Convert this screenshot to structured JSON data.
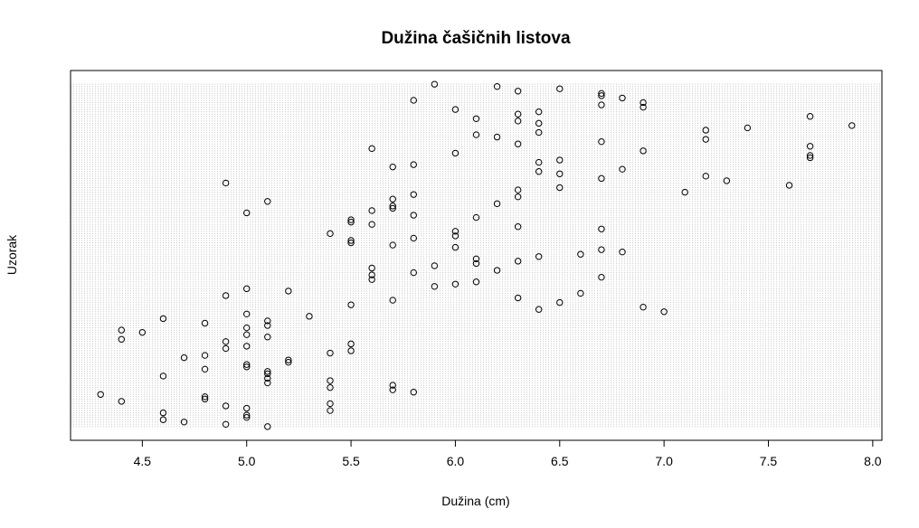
{
  "chart_data": {
    "type": "scatter",
    "title": "Dužina čašičnih listova",
    "xlabel": "Dužina (cm)",
    "ylabel": "Uzorak",
    "xlim": [
      4.3,
      7.9
    ],
    "ylim": [
      1,
      150
    ],
    "x_ticks": [
      "4.5",
      "5.0",
      "5.5",
      "6.0",
      "6.5",
      "7.0",
      "7.5",
      "8.0"
    ],
    "grid": true,
    "grid_style": "dotted horizontal line at every sample index",
    "marker": "open circle",
    "points": [
      {
        "x": 5.1,
        "y": 1
      },
      {
        "x": 4.9,
        "y": 2
      },
      {
        "x": 4.7,
        "y": 3
      },
      {
        "x": 4.6,
        "y": 4
      },
      {
        "x": 5.0,
        "y": 5
      },
      {
        "x": 5.0,
        "y": 6
      },
      {
        "x": 4.6,
        "y": 7
      },
      {
        "x": 5.4,
        "y": 8
      },
      {
        "x": 5.0,
        "y": 9
      },
      {
        "x": 4.9,
        "y": 10
      },
      {
        "x": 5.4,
        "y": 11
      },
      {
        "x": 4.4,
        "y": 12
      },
      {
        "x": 4.8,
        "y": 13
      },
      {
        "x": 4.8,
        "y": 14
      },
      {
        "x": 4.3,
        "y": 15
      },
      {
        "x": 5.8,
        "y": 16
      },
      {
        "x": 5.7,
        "y": 17
      },
      {
        "x": 5.4,
        "y": 18
      },
      {
        "x": 5.7,
        "y": 19
      },
      {
        "x": 5.1,
        "y": 20
      },
      {
        "x": 5.4,
        "y": 21
      },
      {
        "x": 5.1,
        "y": 22
      },
      {
        "x": 4.6,
        "y": 23
      },
      {
        "x": 5.1,
        "y": 24
      },
      {
        "x": 5.1,
        "y": 25
      },
      {
        "x": 4.8,
        "y": 26
      },
      {
        "x": 5.0,
        "y": 27
      },
      {
        "x": 5.0,
        "y": 28
      },
      {
        "x": 5.2,
        "y": 29
      },
      {
        "x": 5.2,
        "y": 30
      },
      {
        "x": 4.7,
        "y": 31
      },
      {
        "x": 4.8,
        "y": 32
      },
      {
        "x": 5.4,
        "y": 33
      },
      {
        "x": 5.5,
        "y": 34
      },
      {
        "x": 4.9,
        "y": 35
      },
      {
        "x": 5.0,
        "y": 36
      },
      {
        "x": 5.5,
        "y": 37
      },
      {
        "x": 4.9,
        "y": 38
      },
      {
        "x": 4.4,
        "y": 39
      },
      {
        "x": 5.1,
        "y": 40
      },
      {
        "x": 5.0,
        "y": 41
      },
      {
        "x": 4.5,
        "y": 42
      },
      {
        "x": 4.4,
        "y": 43
      },
      {
        "x": 5.0,
        "y": 44
      },
      {
        "x": 5.1,
        "y": 45
      },
      {
        "x": 4.8,
        "y": 46
      },
      {
        "x": 5.1,
        "y": 47
      },
      {
        "x": 4.6,
        "y": 48
      },
      {
        "x": 5.3,
        "y": 49
      },
      {
        "x": 5.0,
        "y": 50
      },
      {
        "x": 7.0,
        "y": 51
      },
      {
        "x": 6.4,
        "y": 52
      },
      {
        "x": 6.9,
        "y": 53
      },
      {
        "x": 5.5,
        "y": 54
      },
      {
        "x": 6.5,
        "y": 55
      },
      {
        "x": 5.7,
        "y": 56
      },
      {
        "x": 6.3,
        "y": 57
      },
      {
        "x": 4.9,
        "y": 58
      },
      {
        "x": 6.6,
        "y": 59
      },
      {
        "x": 5.2,
        "y": 60
      },
      {
        "x": 5.0,
        "y": 61
      },
      {
        "x": 5.9,
        "y": 62
      },
      {
        "x": 6.0,
        "y": 63
      },
      {
        "x": 6.1,
        "y": 64
      },
      {
        "x": 5.6,
        "y": 65
      },
      {
        "x": 6.7,
        "y": 66
      },
      {
        "x": 5.6,
        "y": 67
      },
      {
        "x": 5.8,
        "y": 68
      },
      {
        "x": 6.2,
        "y": 69
      },
      {
        "x": 5.6,
        "y": 70
      },
      {
        "x": 5.9,
        "y": 71
      },
      {
        "x": 6.1,
        "y": 72
      },
      {
        "x": 6.3,
        "y": 73
      },
      {
        "x": 6.1,
        "y": 74
      },
      {
        "x": 6.4,
        "y": 75
      },
      {
        "x": 6.6,
        "y": 76
      },
      {
        "x": 6.8,
        "y": 77
      },
      {
        "x": 6.7,
        "y": 78
      },
      {
        "x": 6.0,
        "y": 79
      },
      {
        "x": 5.7,
        "y": 80
      },
      {
        "x": 5.5,
        "y": 81
      },
      {
        "x": 5.5,
        "y": 82
      },
      {
        "x": 5.8,
        "y": 83
      },
      {
        "x": 6.0,
        "y": 84
      },
      {
        "x": 5.4,
        "y": 85
      },
      {
        "x": 6.0,
        "y": 86
      },
      {
        "x": 6.7,
        "y": 87
      },
      {
        "x": 6.3,
        "y": 88
      },
      {
        "x": 5.6,
        "y": 89
      },
      {
        "x": 5.5,
        "y": 90
      },
      {
        "x": 5.5,
        "y": 91
      },
      {
        "x": 6.1,
        "y": 92
      },
      {
        "x": 5.8,
        "y": 93
      },
      {
        "x": 5.0,
        "y": 94
      },
      {
        "x": 5.6,
        "y": 95
      },
      {
        "x": 5.7,
        "y": 96
      },
      {
        "x": 5.7,
        "y": 97
      },
      {
        "x": 6.2,
        "y": 98
      },
      {
        "x": 5.1,
        "y": 99
      },
      {
        "x": 5.7,
        "y": 100
      },
      {
        "x": 6.3,
        "y": 101
      },
      {
        "x": 5.8,
        "y": 102
      },
      {
        "x": 7.1,
        "y": 103
      },
      {
        "x": 6.3,
        "y": 104
      },
      {
        "x": 6.5,
        "y": 105
      },
      {
        "x": 7.6,
        "y": 106
      },
      {
        "x": 4.9,
        "y": 107
      },
      {
        "x": 7.3,
        "y": 108
      },
      {
        "x": 6.7,
        "y": 109
      },
      {
        "x": 7.2,
        "y": 110
      },
      {
        "x": 6.5,
        "y": 111
      },
      {
        "x": 6.4,
        "y": 112
      },
      {
        "x": 6.8,
        "y": 113
      },
      {
        "x": 5.7,
        "y": 114
      },
      {
        "x": 5.8,
        "y": 115
      },
      {
        "x": 6.4,
        "y": 116
      },
      {
        "x": 6.5,
        "y": 117
      },
      {
        "x": 7.7,
        "y": 118
      },
      {
        "x": 7.7,
        "y": 119
      },
      {
        "x": 6.0,
        "y": 120
      },
      {
        "x": 6.9,
        "y": 121
      },
      {
        "x": 5.6,
        "y": 122
      },
      {
        "x": 7.7,
        "y": 123
      },
      {
        "x": 6.3,
        "y": 124
      },
      {
        "x": 6.7,
        "y": 125
      },
      {
        "x": 7.2,
        "y": 126
      },
      {
        "x": 6.2,
        "y": 127
      },
      {
        "x": 6.1,
        "y": 128
      },
      {
        "x": 6.4,
        "y": 129
      },
      {
        "x": 7.2,
        "y": 130
      },
      {
        "x": 7.4,
        "y": 131
      },
      {
        "x": 7.9,
        "y": 132
      },
      {
        "x": 6.4,
        "y": 133
      },
      {
        "x": 6.3,
        "y": 134
      },
      {
        "x": 6.1,
        "y": 135
      },
      {
        "x": 7.7,
        "y": 136
      },
      {
        "x": 6.3,
        "y": 137
      },
      {
        "x": 6.4,
        "y": 138
      },
      {
        "x": 6.0,
        "y": 139
      },
      {
        "x": 6.9,
        "y": 140
      },
      {
        "x": 6.7,
        "y": 141
      },
      {
        "x": 6.9,
        "y": 142
      },
      {
        "x": 5.8,
        "y": 143
      },
      {
        "x": 6.8,
        "y": 144
      },
      {
        "x": 6.7,
        "y": 145
      },
      {
        "x": 6.7,
        "y": 146
      },
      {
        "x": 6.3,
        "y": 147
      },
      {
        "x": 6.5,
        "y": 148
      },
      {
        "x": 6.2,
        "y": 149
      },
      {
        "x": 5.9,
        "y": 150
      }
    ]
  },
  "colors": {
    "background": "#ffffff",
    "axis": "#000000",
    "grid": "#c8c8c8",
    "marker_stroke": "#000000"
  }
}
